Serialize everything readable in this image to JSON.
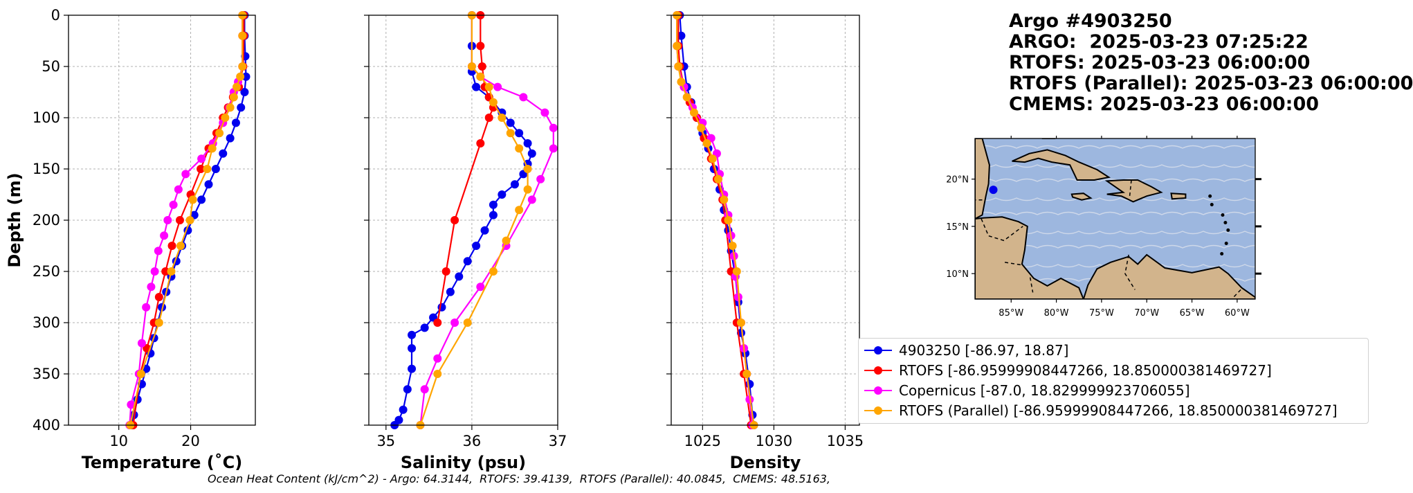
{
  "title_lines": [
    "Argo #4903250",
    "ARGO:  2025-03-23 07:25:22",
    "RTOFS: 2025-03-23 06:00:00",
    "RTOFS (Parallel): 2025-03-23 06:00:00",
    "CMEMS: 2025-03-23 06:00:00"
  ],
  "footer_text": "Ocean Heat Content (kJ/cm^2) - Argo: 64.3144,  RTOFS: 39.4139,  RTOFS (Parallel): 40.0845,  CMEMS: 48.5163,",
  "colors": {
    "argo": "#0000ee",
    "rtofs": "#ff0000",
    "copernicus": "#ff00ff",
    "rtofs_parallel": "#ffa500",
    "ocean": "#9db7df",
    "land": "#d2b48c"
  },
  "legend": [
    {
      "label": "4903250 [-86.97, 18.87]",
      "color": "#0000ee"
    },
    {
      "label": "RTOFS [-86.95999908447266, 18.850000381469727]",
      "color": "#ff0000"
    },
    {
      "label": "Copernicus [-87.0, 18.829999923706055]",
      "color": "#ff00ff"
    },
    {
      "label": "RTOFS (Parallel) [-86.95999908447266, 18.850000381469727]",
      "color": "#ffa500"
    }
  ],
  "chart_data": [
    {
      "type": "line",
      "xlabel": "Temperature (˚C)",
      "ylabel": "Depth (m)",
      "xlim": [
        3,
        29
      ],
      "ylim": [
        400,
        0
      ],
      "xticks": [
        10,
        20
      ],
      "yticks": [
        0,
        50,
        100,
        150,
        200,
        250,
        300,
        350,
        400
      ],
      "grid": true,
      "series": [
        {
          "name": "4903250 [-86.97, 18.87]",
          "key": "argo",
          "points": [
            [
              27.5,
              0
            ],
            [
              27.5,
              20
            ],
            [
              27.6,
              40
            ],
            [
              27.7,
              60
            ],
            [
              27.5,
              75
            ],
            [
              27.0,
              90
            ],
            [
              26.3,
              105
            ],
            [
              25.5,
              120
            ],
            [
              24.5,
              135
            ],
            [
              23.5,
              150
            ],
            [
              22.5,
              165
            ],
            [
              21.5,
              180
            ],
            [
              20.5,
              195
            ],
            [
              19.6,
              210
            ],
            [
              18.8,
              225
            ],
            [
              18.0,
              240
            ],
            [
              17.3,
              255
            ],
            [
              16.6,
              270
            ],
            [
              16.0,
              285
            ],
            [
              15.4,
              300
            ],
            [
              14.9,
              315
            ],
            [
              14.4,
              330
            ],
            [
              13.8,
              345
            ],
            [
              13.2,
              360
            ],
            [
              12.6,
              375
            ],
            [
              12.1,
              390
            ],
            [
              11.8,
              400
            ]
          ]
        },
        {
          "name": "RTOFS [-86.95999908447266, 18.850000381469727]",
          "key": "rtofs",
          "points": [
            [
              27.4,
              0
            ],
            [
              27.4,
              20
            ],
            [
              27.3,
              50
            ],
            [
              26.7,
              70
            ],
            [
              25.9,
              80
            ],
            [
              25.2,
              90
            ],
            [
              24.5,
              100
            ],
            [
              23.6,
              115
            ],
            [
              22.5,
              130
            ],
            [
              21.4,
              150
            ],
            [
              20.0,
              175
            ],
            [
              18.5,
              200
            ],
            [
              17.4,
              225
            ],
            [
              16.5,
              250
            ],
            [
              15.6,
              275
            ],
            [
              14.9,
              300
            ],
            [
              13.9,
              325
            ],
            [
              13.0,
              350
            ],
            [
              12.0,
              400
            ]
          ]
        },
        {
          "name": "Copernicus [-87.0, 18.829999923706055]",
          "key": "copernicus",
          "points": [
            [
              27.2,
              0
            ],
            [
              27.2,
              20
            ],
            [
              27.2,
              50
            ],
            [
              26.6,
              65
            ],
            [
              26.0,
              75
            ],
            [
              25.4,
              90
            ],
            [
              24.5,
              105
            ],
            [
              23.1,
              125
            ],
            [
              21.5,
              140
            ],
            [
              19.3,
              155
            ],
            [
              18.3,
              170
            ],
            [
              17.6,
              185
            ],
            [
              16.8,
              200
            ],
            [
              16.3,
              215
            ],
            [
              15.5,
              230
            ],
            [
              15.0,
              250
            ],
            [
              14.5,
              265
            ],
            [
              13.8,
              285
            ],
            [
              13.2,
              320
            ],
            [
              12.8,
              350
            ],
            [
              11.7,
              380
            ],
            [
              11.5,
              400
            ]
          ]
        },
        {
          "name": "RTOFS (Parallel) [-86.95999908447266, 18.850000381469727]",
          "key": "rtofs_parallel",
          "points": [
            [
              27.2,
              0
            ],
            [
              27.2,
              20
            ],
            [
              27.2,
              50
            ],
            [
              26.9,
              60
            ],
            [
              26.4,
              70
            ],
            [
              26.0,
              80
            ],
            [
              25.5,
              90
            ],
            [
              24.8,
              100
            ],
            [
              24.0,
              115
            ],
            [
              23.0,
              130
            ],
            [
              22.3,
              150
            ],
            [
              20.3,
              180
            ],
            [
              19.9,
              200
            ],
            [
              18.6,
              225
            ],
            [
              17.3,
              250
            ],
            [
              15.6,
              300
            ],
            [
              13.1,
              350
            ],
            [
              11.6,
              400
            ]
          ]
        }
      ]
    },
    {
      "type": "line",
      "xlabel": "Salinity (psu)",
      "ylabel": "",
      "xlim": [
        34.8,
        37.0
      ],
      "ylim": [
        400,
        0
      ],
      "xticks": [
        35,
        36,
        37
      ],
      "yticks": [
        0,
        50,
        100,
        150,
        200,
        250,
        300,
        350,
        400
      ],
      "grid": true,
      "series": [
        {
          "name": "4903250 [-86.97, 18.87]",
          "key": "argo",
          "points": [
            [
              36.0,
              0
            ],
            [
              36.0,
              30
            ],
            [
              36.0,
              55
            ],
            [
              36.05,
              70
            ],
            [
              36.2,
              80
            ],
            [
              36.35,
              95
            ],
            [
              36.45,
              105
            ],
            [
              36.55,
              115
            ],
            [
              36.65,
              125
            ],
            [
              36.7,
              135
            ],
            [
              36.65,
              145
            ],
            [
              36.6,
              155
            ],
            [
              36.5,
              165
            ],
            [
              36.35,
              175
            ],
            [
              36.25,
              185
            ],
            [
              36.25,
              195
            ],
            [
              36.15,
              210
            ],
            [
              36.05,
              225
            ],
            [
              35.95,
              240
            ],
            [
              35.85,
              255
            ],
            [
              35.75,
              270
            ],
            [
              35.65,
              285
            ],
            [
              35.55,
              295
            ],
            [
              35.45,
              305
            ],
            [
              35.3,
              312
            ],
            [
              35.3,
              325
            ],
            [
              35.3,
              345
            ],
            [
              35.25,
              365
            ],
            [
              35.2,
              385
            ],
            [
              35.15,
              395
            ],
            [
              35.1,
              400
            ]
          ]
        },
        {
          "name": "RTOFS [-86.95999908447266, 18.850000381469727]",
          "key": "rtofs",
          "points": [
            [
              36.1,
              0
            ],
            [
              36.1,
              30
            ],
            [
              36.12,
              50
            ],
            [
              36.15,
              70
            ],
            [
              36.2,
              80
            ],
            [
              36.25,
              90
            ],
            [
              36.2,
              100
            ],
            [
              36.1,
              125
            ],
            [
              35.8,
              200
            ],
            [
              35.7,
              250
            ],
            [
              35.6,
              300
            ]
          ]
        },
        {
          "name": "Copernicus [-87.0, 18.829999923706055]",
          "key": "copernicus",
          "points": [
            [
              36.0,
              0
            ],
            [
              36.0,
              50
            ],
            [
              36.1,
              60
            ],
            [
              36.3,
              70
            ],
            [
              36.6,
              80
            ],
            [
              36.85,
              95
            ],
            [
              36.95,
              110
            ],
            [
              36.95,
              130
            ],
            [
              36.8,
              160
            ],
            [
              36.7,
              180
            ],
            [
              36.4,
              225
            ],
            [
              36.1,
              265
            ],
            [
              35.8,
              300
            ],
            [
              35.6,
              335
            ],
            [
              35.45,
              365
            ],
            [
              35.4,
              400
            ]
          ]
        },
        {
          "name": "RTOFS (Parallel) [-86.95999908447266, 18.850000381469727]",
          "key": "rtofs_parallel",
          "points": [
            [
              36.0,
              0
            ],
            [
              36.0,
              50
            ],
            [
              36.1,
              60
            ],
            [
              36.2,
              70
            ],
            [
              36.25,
              85
            ],
            [
              36.35,
              100
            ],
            [
              36.45,
              115
            ],
            [
              36.55,
              130
            ],
            [
              36.65,
              150
            ],
            [
              36.65,
              170
            ],
            [
              36.55,
              190
            ],
            [
              36.4,
              220
            ],
            [
              36.25,
              250
            ],
            [
              35.95,
              300
            ],
            [
              35.6,
              350
            ],
            [
              35.4,
              400
            ]
          ]
        }
      ]
    },
    {
      "type": "line",
      "xlabel": "Density",
      "ylabel": "",
      "xlim": [
        1022.8,
        1036
      ],
      "ylim": [
        400,
        0
      ],
      "xticks": [
        1025,
        1030,
        1035
      ],
      "yticks": [
        0,
        50,
        100,
        150,
        200,
        250,
        300,
        350,
        400
      ],
      "grid": true,
      "series": [
        {
          "name": "4903250 [-86.97, 18.87]",
          "key": "argo",
          "points": [
            [
              1023.4,
              0
            ],
            [
              1023.5,
              20
            ],
            [
              1023.7,
              50
            ],
            [
              1023.9,
              70
            ],
            [
              1024.2,
              85
            ],
            [
              1024.6,
              100
            ],
            [
              1025.0,
              115
            ],
            [
              1025.4,
              130
            ],
            [
              1025.8,
              150
            ],
            [
              1026.2,
              170
            ],
            [
              1026.5,
              190
            ],
            [
              1026.8,
              210
            ],
            [
              1027.0,
              230
            ],
            [
              1027.3,
              255
            ],
            [
              1027.5,
              280
            ],
            [
              1027.7,
              310
            ],
            [
              1028.0,
              330
            ],
            [
              1028.3,
              360
            ],
            [
              1028.5,
              390
            ],
            [
              1028.6,
              400
            ]
          ]
        },
        {
          "name": "RTOFS [-86.95999908447266, 18.850000381469727]",
          "key": "rtofs",
          "points": [
            [
              1023.3,
              0
            ],
            [
              1023.3,
              30
            ],
            [
              1023.4,
              50
            ],
            [
              1023.7,
              70
            ],
            [
              1024.1,
              85
            ],
            [
              1024.6,
              100
            ],
            [
              1025.1,
              120
            ],
            [
              1025.6,
              140
            ],
            [
              1026.0,
              160
            ],
            [
              1026.4,
              180
            ],
            [
              1026.6,
              200
            ],
            [
              1027.0,
              250
            ],
            [
              1027.4,
              300
            ],
            [
              1027.9,
              350
            ],
            [
              1028.4,
              400
            ]
          ]
        },
        {
          "name": "Copernicus [-87.0, 18.829999923706055]",
          "key": "copernicus",
          "points": [
            [
              1023.2,
              0
            ],
            [
              1023.2,
              30
            ],
            [
              1023.3,
              50
            ],
            [
              1023.7,
              70
            ],
            [
              1024.3,
              90
            ],
            [
              1025.0,
              105
            ],
            [
              1025.6,
              120
            ],
            [
              1026.0,
              135
            ],
            [
              1026.2,
              155
            ],
            [
              1026.5,
              175
            ],
            [
              1026.8,
              195
            ],
            [
              1027.0,
              215
            ],
            [
              1027.2,
              235
            ],
            [
              1027.3,
              255
            ],
            [
              1027.5,
              275
            ],
            [
              1027.7,
              300
            ],
            [
              1027.9,
              325
            ],
            [
              1028.1,
              350
            ],
            [
              1028.3,
              375
            ],
            [
              1028.5,
              400
            ]
          ]
        },
        {
          "name": "RTOFS (Parallel) [-86.95999908447266, 18.850000381469727]",
          "key": "rtofs_parallel",
          "points": [
            [
              1023.2,
              0
            ],
            [
              1023.2,
              30
            ],
            [
              1023.3,
              50
            ],
            [
              1023.5,
              65
            ],
            [
              1023.9,
              80
            ],
            [
              1024.4,
              95
            ],
            [
              1024.9,
              110
            ],
            [
              1025.3,
              125
            ],
            [
              1025.7,
              140
            ],
            [
              1026.1,
              160
            ],
            [
              1026.5,
              180
            ],
            [
              1026.8,
              200
            ],
            [
              1027.1,
              225
            ],
            [
              1027.4,
              250
            ],
            [
              1027.7,
              300
            ],
            [
              1028.1,
              350
            ],
            [
              1028.6,
              400
            ]
          ]
        }
      ]
    }
  ],
  "map": {
    "x_ticks": [
      "85°W",
      "80°W",
      "75°W",
      "70°W",
      "65°W",
      "60°W"
    ],
    "y_ticks": [
      "20°N",
      "15°N",
      "10°N"
    ],
    "argo_position": {
      "lon": -86.97,
      "lat": 18.87
    }
  }
}
